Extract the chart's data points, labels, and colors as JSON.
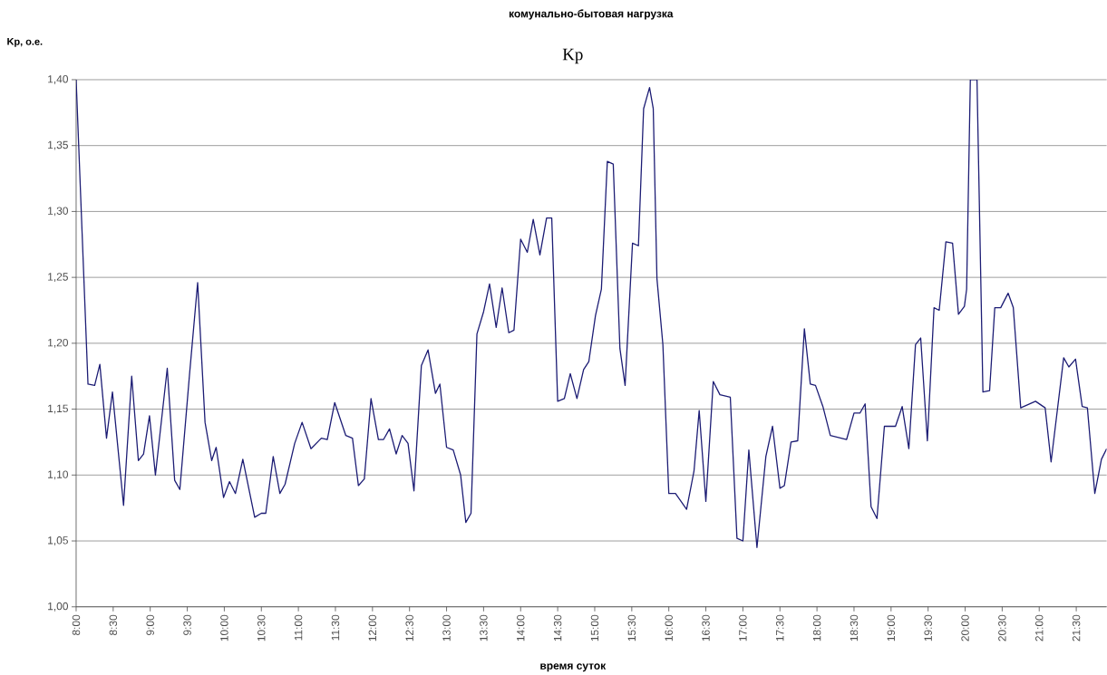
{
  "chart_data": {
    "type": "line",
    "title": "комунально-бытовая нагрузка",
    "subtitle": "Kp",
    "xlabel": "время суток",
    "ylabel": "Kp, о.е.",
    "xlim": [
      8,
      21.91
    ],
    "ylim": [
      1.0,
      1.4
    ],
    "xticks": [
      {
        "value": 8,
        "label": "8:00"
      },
      {
        "value": 8.5,
        "label": "8:30"
      },
      {
        "value": 9,
        "label": "9:00"
      },
      {
        "value": 9.5,
        "label": "9:30"
      },
      {
        "value": 10,
        "label": "10:00"
      },
      {
        "value": 10.5,
        "label": "10:30"
      },
      {
        "value": 11,
        "label": "11:00"
      },
      {
        "value": 11.5,
        "label": "11:30"
      },
      {
        "value": 12,
        "label": "12:00"
      },
      {
        "value": 12.5,
        "label": "12:30"
      },
      {
        "value": 13,
        "label": "13:00"
      },
      {
        "value": 13.5,
        "label": "13:30"
      },
      {
        "value": 14,
        "label": "14:00"
      },
      {
        "value": 14.5,
        "label": "14:30"
      },
      {
        "value": 15,
        "label": "15:00"
      },
      {
        "value": 15.5,
        "label": "15:30"
      },
      {
        "value": 16,
        "label": "16:00"
      },
      {
        "value": 16.5,
        "label": "16:30"
      },
      {
        "value": 17,
        "label": "17:00"
      },
      {
        "value": 17.5,
        "label": "17:30"
      },
      {
        "value": 18,
        "label": "18:00"
      },
      {
        "value": 18.5,
        "label": "18:30"
      },
      {
        "value": 19,
        "label": "19:00"
      },
      {
        "value": 19.5,
        "label": "19:30"
      },
      {
        "value": 20,
        "label": "20:00"
      },
      {
        "value": 20.5,
        "label": "20:30"
      },
      {
        "value": 21,
        "label": "21:00"
      },
      {
        "value": 21.5,
        "label": "21:30"
      }
    ],
    "yticks": [
      {
        "value": 1.0,
        "label": "1,00"
      },
      {
        "value": 1.05,
        "label": "1,05"
      },
      {
        "value": 1.1,
        "label": "1,10"
      },
      {
        "value": 1.15,
        "label": "1,15"
      },
      {
        "value": 1.2,
        "label": "1,20"
      },
      {
        "value": 1.25,
        "label": "1,25"
      },
      {
        "value": 1.3,
        "label": "1,30"
      },
      {
        "value": 1.35,
        "label": "1,35"
      },
      {
        "value": 1.4,
        "label": "1,40"
      }
    ],
    "grid": "y",
    "marker": "none",
    "line_style": "solid",
    "series": [
      {
        "color": "#1c1c74",
        "x": [
          8.0,
          8.16,
          8.25,
          8.32,
          8.41,
          8.49,
          8.64,
          8.75,
          8.84,
          8.91,
          8.99,
          9.07,
          9.23,
          9.33,
          9.4,
          9.53,
          9.64,
          9.74,
          9.83,
          9.89,
          9.99,
          10.07,
          10.15,
          10.25,
          10.41,
          10.5,
          10.56,
          10.66,
          10.75,
          10.82,
          10.95,
          11.05,
          11.17,
          11.31,
          11.39,
          11.49,
          11.64,
          11.73,
          11.81,
          11.89,
          11.98,
          12.08,
          12.15,
          12.23,
          12.32,
          12.4,
          12.48,
          12.56,
          12.66,
          12.75,
          12.85,
          12.91,
          13.0,
          13.09,
          13.19,
          13.26,
          13.33,
          13.41,
          13.5,
          13.58,
          13.67,
          13.75,
          13.84,
          13.91,
          14.0,
          14.09,
          14.17,
          14.26,
          14.35,
          14.42,
          14.5,
          14.59,
          14.67,
          14.76,
          14.85,
          14.92,
          15.01,
          15.09,
          15.17,
          15.25,
          15.34,
          15.41,
          15.51,
          15.59,
          15.66,
          15.74,
          15.79,
          15.84,
          15.92,
          16.0,
          16.09,
          16.24,
          16.34,
          16.41,
          16.5,
          16.6,
          16.69,
          16.83,
          16.92,
          17.0,
          17.08,
          17.19,
          17.31,
          17.4,
          17.5,
          17.56,
          17.65,
          17.74,
          17.83,
          17.91,
          17.98,
          18.08,
          18.18,
          18.4,
          18.5,
          18.58,
          18.65,
          18.73,
          18.81,
          18.91,
          19.06,
          19.15,
          19.24,
          19.33,
          19.4,
          19.49,
          19.58,
          19.65,
          19.74,
          19.83,
          19.91,
          19.99,
          20.02,
          20.07,
          20.16,
          20.24,
          20.33,
          20.4,
          20.48,
          20.58,
          20.65,
          20.75,
          20.95,
          21.08,
          21.16,
          21.33,
          21.4,
          21.49,
          21.58,
          21.65,
          21.75,
          21.84,
          21.91
        ],
        "values": [
          1.4,
          1.169,
          1.168,
          1.184,
          1.128,
          1.163,
          1.077,
          1.175,
          1.111,
          1.116,
          1.145,
          1.1,
          1.181,
          1.096,
          1.089,
          1.176,
          1.246,
          1.14,
          1.111,
          1.121,
          1.083,
          1.095,
          1.086,
          1.112,
          1.068,
          1.071,
          1.071,
          1.114,
          1.086,
          1.093,
          1.124,
          1.14,
          1.12,
          1.128,
          1.127,
          1.155,
          1.13,
          1.128,
          1.092,
          1.097,
          1.158,
          1.127,
          1.127,
          1.135,
          1.116,
          1.13,
          1.124,
          1.088,
          1.183,
          1.195,
          1.162,
          1.169,
          1.121,
          1.119,
          1.1,
          1.064,
          1.071,
          1.207,
          1.224,
          1.245,
          1.212,
          1.242,
          1.208,
          1.21,
          1.279,
          1.269,
          1.294,
          1.267,
          1.295,
          1.295,
          1.156,
          1.158,
          1.177,
          1.158,
          1.18,
          1.186,
          1.221,
          1.241,
          1.338,
          1.336,
          1.196,
          1.168,
          1.276,
          1.274,
          1.378,
          1.394,
          1.378,
          1.249,
          1.199,
          1.086,
          1.086,
          1.074,
          1.103,
          1.149,
          1.08,
          1.171,
          1.161,
          1.159,
          1.052,
          1.05,
          1.119,
          1.045,
          1.114,
          1.137,
          1.09,
          1.092,
          1.125,
          1.126,
          1.211,
          1.169,
          1.168,
          1.152,
          1.13,
          1.127,
          1.147,
          1.147,
          1.154,
          1.076,
          1.067,
          1.137,
          1.137,
          1.152,
          1.12,
          1.199,
          1.204,
          1.126,
          1.227,
          1.225,
          1.277,
          1.276,
          1.222,
          1.228,
          1.241,
          1.4,
          1.4,
          1.163,
          1.164,
          1.227,
          1.227,
          1.238,
          1.227,
          1.151,
          1.156,
          1.151,
          1.11,
          1.189,
          1.182,
          1.188,
          1.152,
          1.151,
          1.086,
          1.112,
          1.12
        ]
      }
    ]
  }
}
